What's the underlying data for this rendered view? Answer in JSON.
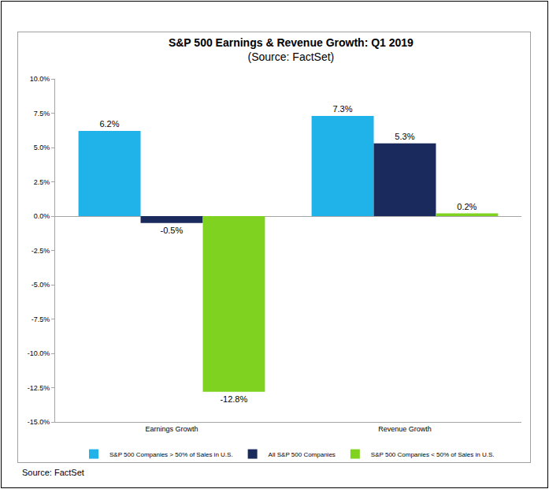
{
  "chart_data": {
    "type": "bar",
    "title": "S&P 500 Earnings & Revenue Growth: Q1 2019",
    "subtitle": "(Source: FactSet)",
    "source": "Source: FactSet",
    "categories": [
      "Earnings Growth",
      "Revenue Growth"
    ],
    "series": [
      {
        "name": "S&P 500 Companies > 50% of Sales in U.S.",
        "color": "#1fb3ea",
        "values": [
          6.2,
          7.3
        ],
        "value_labels": [
          "6.2%",
          "7.3%"
        ]
      },
      {
        "name": "All S&P 500 Companies",
        "color": "#1b2a5c",
        "values": [
          -0.5,
          5.3
        ],
        "value_labels": [
          "-0.5%",
          "5.3%"
        ]
      },
      {
        "name": "S&P 500 Companies < 50% of Sales in U.S.",
        "color": "#7fd320",
        "values": [
          -12.8,
          0.2
        ],
        "value_labels": [
          "-12.8%",
          "0.2%"
        ]
      }
    ],
    "ylim": [
      -15,
      10
    ],
    "yticks": [
      {
        "value": -15,
        "label": "-15.0%"
      },
      {
        "value": -12.5,
        "label": "-12.5%"
      },
      {
        "value": -10,
        "label": "-10.0%"
      },
      {
        "value": -7.5,
        "label": "-7.5%"
      },
      {
        "value": -5,
        "label": "-5.0%"
      },
      {
        "value": -2.5,
        "label": "-2.5%"
      },
      {
        "value": 0,
        "label": "0.0%"
      },
      {
        "value": 2.5,
        "label": "2.5%"
      },
      {
        "value": 5,
        "label": "5.0%"
      },
      {
        "value": 7.5,
        "label": "7.5%"
      },
      {
        "value": 10,
        "label": "10.0%"
      }
    ],
    "grid": false,
    "legend": "bottom",
    "data_labels": true
  }
}
